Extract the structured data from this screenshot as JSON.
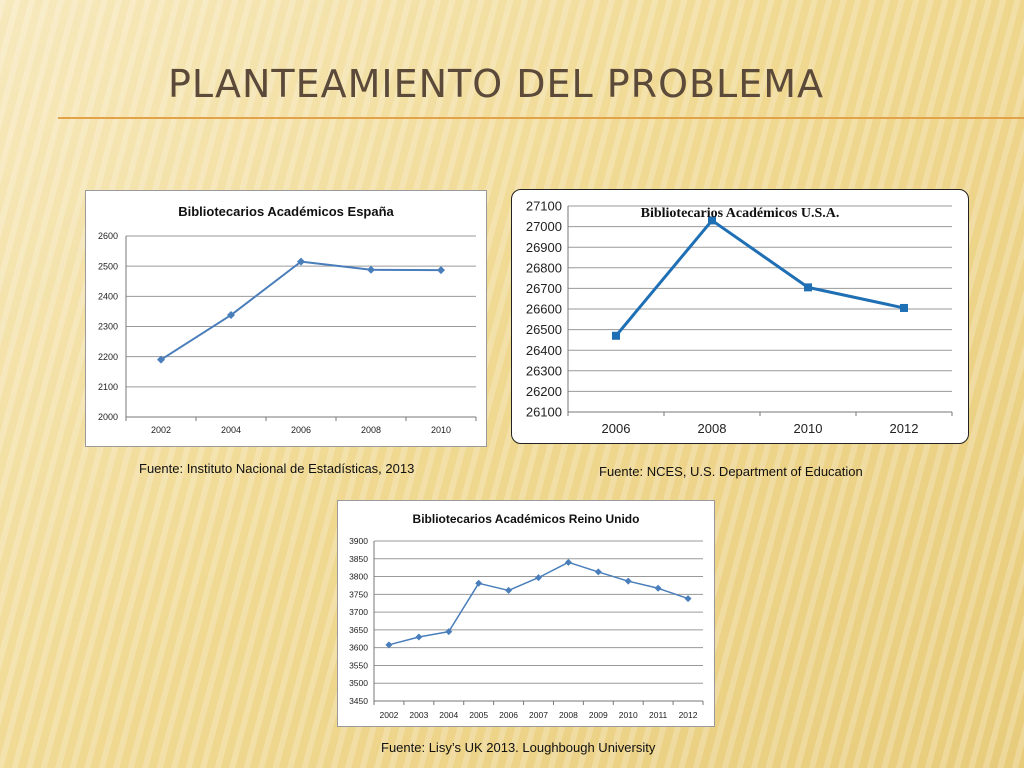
{
  "slide": {
    "title": "PLANTEAMIENTO DEL PROBLEMA",
    "sources": {
      "es": "Fuente: Instituto Nacional de Estadísticas, 2013",
      "us": "Fuente: NCES, U.S. Department of Education",
      "uk": "Fuente: Lisy’s UK 2013. Loughbough University"
    }
  },
  "colors": {
    "series_blue": "#4a7ebb",
    "series_us": "#1f6fb5",
    "grid": "#9a9a9a",
    "title_text": "#5b4a3a",
    "title_rule": "#e1a24a"
  },
  "chart_data": [
    {
      "type": "line",
      "title": "Bibliotecarios Académicos España",
      "xlabel": "",
      "ylabel": "",
      "categories": [
        "2002",
        "2004",
        "2006",
        "2008",
        "2010"
      ],
      "series": [
        {
          "values": [
            2190,
            2338,
            2515,
            2488,
            2487
          ]
        }
      ],
      "ylim": [
        2000,
        2600
      ],
      "yticks": [
        2000,
        2100,
        2200,
        2300,
        2400,
        2500,
        2600
      ],
      "grid": true,
      "legend": "none",
      "marker": "diamond"
    },
    {
      "type": "line",
      "title": "Bibliotecarios Académicos U.S.A.",
      "xlabel": "",
      "ylabel": "",
      "categories": [
        "2006",
        "2008",
        "2010",
        "2012"
      ],
      "series": [
        {
          "values": [
            26470,
            27030,
            26705,
            26605
          ]
        }
      ],
      "ylim": [
        26100,
        27100
      ],
      "yticks": [
        26100,
        26200,
        26300,
        26400,
        26500,
        26600,
        26700,
        26800,
        26900,
        27000,
        27100
      ],
      "grid": true,
      "legend": "none",
      "marker": "square"
    },
    {
      "type": "line",
      "title": "Bibliotecarios Académicos Reino Unido",
      "xlabel": "",
      "ylabel": "",
      "categories": [
        "2002",
        "2003",
        "2004",
        "2005",
        "2006",
        "2007",
        "2008",
        "2009",
        "2010",
        "2011",
        "2012"
      ],
      "series": [
        {
          "values": [
            3608,
            3630,
            3645,
            3781,
            3761,
            3797,
            3840,
            3813,
            3787,
            3767,
            3738
          ]
        }
      ],
      "ylim": [
        3450,
        3900
      ],
      "yticks": [
        3450,
        3500,
        3550,
        3600,
        3650,
        3700,
        3750,
        3800,
        3850,
        3900
      ],
      "grid": true,
      "legend": "none",
      "marker": "diamond"
    }
  ]
}
